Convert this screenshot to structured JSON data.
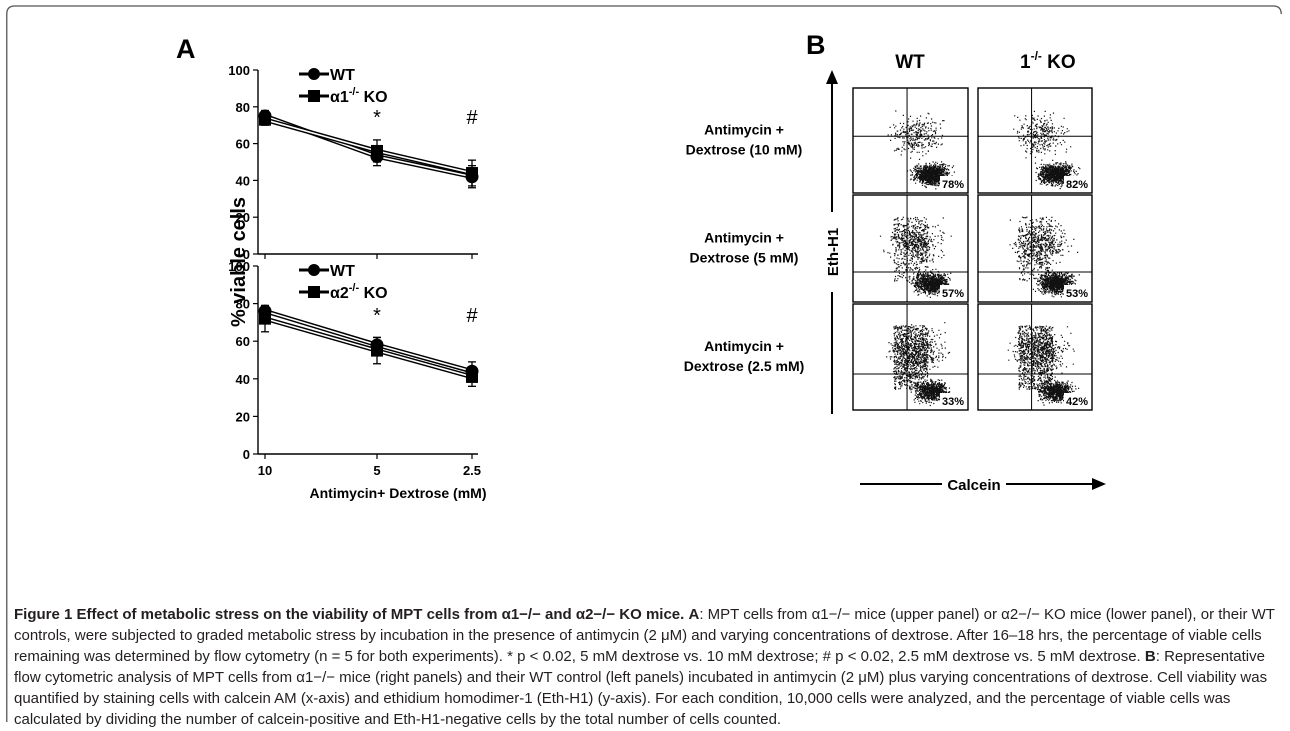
{
  "chart_data": [
    {
      "type": "line",
      "panel": "A",
      "ylabel": "% viable cells",
      "ylim": [
        0,
        100
      ],
      "yticks": [
        "0",
        "20",
        "40",
        "60",
        "80",
        "100"
      ],
      "categories": [
        "10",
        "5",
        "2.5"
      ],
      "series": [
        {
          "name": "WT",
          "marker": "circle",
          "values": [
            75,
            53,
            42
          ],
          "errors": [
            3,
            5,
            6
          ]
        },
        {
          "name": "α1-/- KO",
          "name_base": "α1",
          "name_sup": "-/-",
          "name_suffix": " KO",
          "marker": "square",
          "values": [
            73,
            56,
            44
          ],
          "errors": [
            3,
            6,
            7
          ]
        }
      ],
      "annotations": [
        "*",
        "#"
      ]
    },
    {
      "type": "line",
      "panel": "A",
      "ylim": [
        0,
        100
      ],
      "yticks": [
        "0",
        "20",
        "40",
        "60",
        "80",
        "100"
      ],
      "categories": [
        "10",
        "5",
        "2.5"
      ],
      "xlabel": "Antimycin+ Dextrose (mM)",
      "series": [
        {
          "name": "WT",
          "marker": "circle",
          "values": [
            76,
            58,
            44
          ],
          "errors": [
            3,
            4,
            5
          ]
        },
        {
          "name": "α2-/- KO",
          "name_base": "α2",
          "name_sup": "-/-",
          "name_suffix": " KO",
          "marker": "square",
          "values": [
            72,
            55,
            41
          ],
          "errors": [
            7,
            7,
            5
          ]
        }
      ],
      "annotations": [
        "*",
        "#"
      ]
    }
  ],
  "panelA": {
    "letter": "A"
  },
  "panelB": {
    "letter": "B",
    "col_wt": "WT",
    "col_ko_base": "1",
    "col_ko_sup": "-/-",
    "col_ko_suffix": " KO",
    "yaxis": "Eth-H1",
    "xaxis": "Calcein",
    "rows": [
      {
        "line1": "Antimycin +",
        "line2": "Dextrose (10 mM)",
        "wt_pct": "78%",
        "ko_pct": "82%"
      },
      {
        "line1": "Antimycin +",
        "line2": "Dextrose (5 mM)",
        "wt_pct": "57%",
        "ko_pct": "53%"
      },
      {
        "line1": "Antimycin +",
        "line2": "Dextrose (2.5 mM)",
        "wt_pct": "33%",
        "ko_pct": "42%"
      }
    ]
  },
  "caption": {
    "title": "Figure 1 Effect of metabolic stress on the viability of MPT cells from α1−/− and α2−/− KO mice.",
    "label_a": "A",
    "text_a": ": MPT cells from α1−/− mice (upper panel) or α2−/− KO mice (lower panel), or their WT controls, were subjected to graded metabolic stress by incubation in the presence of antimycin (2 μM) and varying concentrations of dextrose. After 16–18 hrs, the percentage of viable cells remaining was determined by flow cytometry (n = 5 for both experiments). * p < 0.02, 5 mM dextrose vs. 10 mM dextrose; # p < 0.02, 2.5 mM dextrose vs. 5 mM dextrose. ",
    "label_b": "B",
    "text_b": ": Representative flow cytometric analysis of MPT cells from α1−/− mice (right panels) and their WT control (left panels) incubated in antimycin (2 μM) plus varying concentrations of dextrose. Cell viability was quantified by staining cells with calcein AM (x-axis) and ethidium homodimer-1 (Eth-H1) (y-axis). For each condition, 10,000 cells were analyzed, and the percentage of viable cells was calculated by dividing the number of calcein-positive and Eth-H1-negative cells by the total number of cells counted."
  }
}
